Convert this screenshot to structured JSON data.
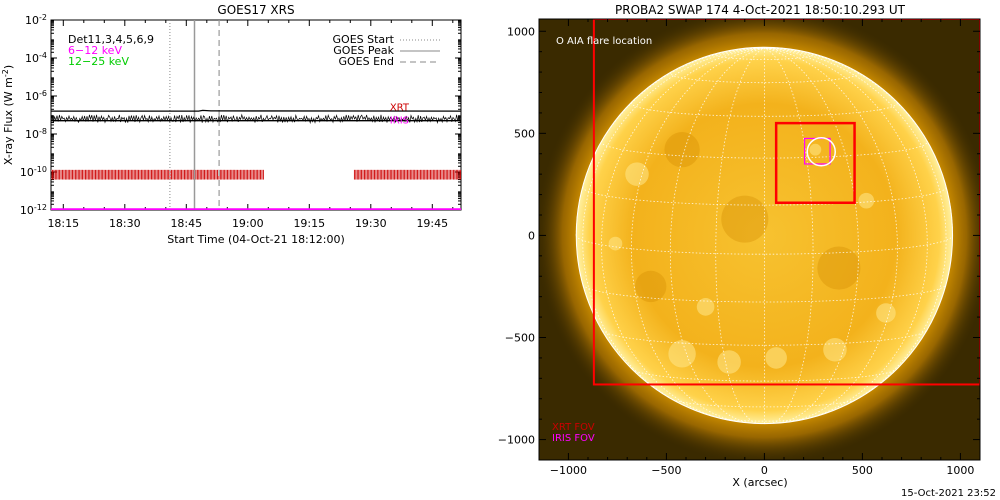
{
  "chart_data": [
    {
      "type": "line",
      "title": "GOES17 XRS",
      "xlabel": "Start Time (04-Oct-21 18:12:00)",
      "ylabel": "X-ray Flux (W m⁻²)",
      "ylabel_main": "X-ray Flux (W m",
      "ylabel_sup": "-2",
      "ylabel_end": ")",
      "x_scale": "time",
      "xlim": [
        "18:12",
        "19:52"
      ],
      "xticks": [
        "18:15",
        "18:30",
        "18:45",
        "19:00",
        "19:15",
        "19:30",
        "19:45"
      ],
      "y_scale": "log",
      "ylim": [
        1e-12,
        0.01
      ],
      "yticks": [
        {
          "base": "10",
          "exp": "-12",
          "value": 1e-12
        },
        {
          "base": "10",
          "exp": "-10",
          "value": 1e-10
        },
        {
          "base": "10",
          "exp": "-8",
          "value": 1e-08
        },
        {
          "base": "10",
          "exp": "-6",
          "value": 1e-06
        },
        {
          "base": "10",
          "exp": "-4",
          "value": 0.0001
        },
        {
          "base": "10",
          "exp": "-2",
          "value": 0.01
        }
      ],
      "series": [
        {
          "color": "#000000",
          "x": [
            "18:12",
            "18:48",
            "18:49",
            "18:51",
            "19:52"
          ],
          "y": [
            1.6e-07,
            1.6e-07,
            1.75e-07,
            1.65e-07,
            1.6e-07
          ]
        },
        {
          "color": "#000000",
          "x": [
            "18:12",
            "19:52"
          ],
          "y": [
            5e-08,
            5e-08
          ]
        },
        {
          "color": "#ff00ff",
          "x": [
            "18:12",
            "19:52"
          ],
          "y": [
            1.1e-12,
            1.1e-12
          ]
        }
      ],
      "legend_left": [
        {
          "text": "Det11,3,4,5,6,9",
          "color": "#000000"
        },
        {
          "text": "6−12 keV",
          "color": "#ff00ff"
        },
        {
          "text": "12−25 keV",
          "color": "#00cc00"
        }
      ],
      "legend_right": [
        {
          "text": "GOES Start",
          "style": "dotted"
        },
        {
          "text": "GOES Peak",
          "style": "solid"
        },
        {
          "text": "GOES End",
          "style": "dashed"
        }
      ],
      "goes_lines": {
        "start": "18:41",
        "peak": "18:47",
        "end": "18:53"
      },
      "coverage": [
        {
          "label": "XRT",
          "color": "#cc0000",
          "y": 2.5e-07
        },
        {
          "label": "IRIS",
          "color": "#ff00ff",
          "y": 5e-08
        }
      ],
      "observation_ticks": {
        "color": "#cc0000",
        "segments": [
          [
            "18:12",
            "19:04"
          ],
          [
            "19:26",
            "19:52"
          ]
        ],
        "y_range": [
          4e-11,
          1.3e-10
        ]
      }
    },
    {
      "type": "image",
      "title": "PROBA2 SWAP 174   4-Oct-2021 18:50:10.293 UT",
      "xlabel": "X (arcsec)",
      "xlim": [
        -1150,
        1100
      ],
      "ylim": [
        -1100,
        1060
      ],
      "xticks": [
        -1000,
        -500,
        0,
        500,
        1000
      ],
      "yticks": [
        -1000,
        -500,
        0,
        500,
        1000
      ],
      "tick_labels_x": [
        "−1000",
        "−500",
        "0",
        "500",
        "1000"
      ],
      "tick_labels_y": [
        "−1000",
        "−500",
        "0",
        "500",
        "1000"
      ],
      "annotation": "O AIA flare location",
      "legend": [
        {
          "text": "XRT FOV",
          "color": "#cc0000"
        },
        {
          "text": "IRIS FOV",
          "color": "#ff00ff"
        }
      ],
      "solar_radius_arcsec": 960,
      "fov_boxes": [
        {
          "label": "XRT FOV",
          "color": "#ff0000",
          "x": [
            -870,
            1100
          ],
          "y": [
            -730,
            1060
          ]
        },
        {
          "label": "XRT FOV",
          "color": "#ff0000",
          "x": [
            60,
            460
          ],
          "y": [
            160,
            550
          ]
        },
        {
          "label": "IRIS FOV",
          "color": "#ff00ff",
          "x": [
            205,
            335
          ],
          "y": [
            350,
            475
          ]
        }
      ],
      "flare_location": {
        "x": 290,
        "y": 410
      },
      "colors": {
        "disk_center": "#ffd040",
        "disk_edge": "#e8a000",
        "background": "#3a2a00",
        "grid": "#ffffff"
      }
    }
  ],
  "footer_timestamp": "15-Oct-2021 23:52"
}
